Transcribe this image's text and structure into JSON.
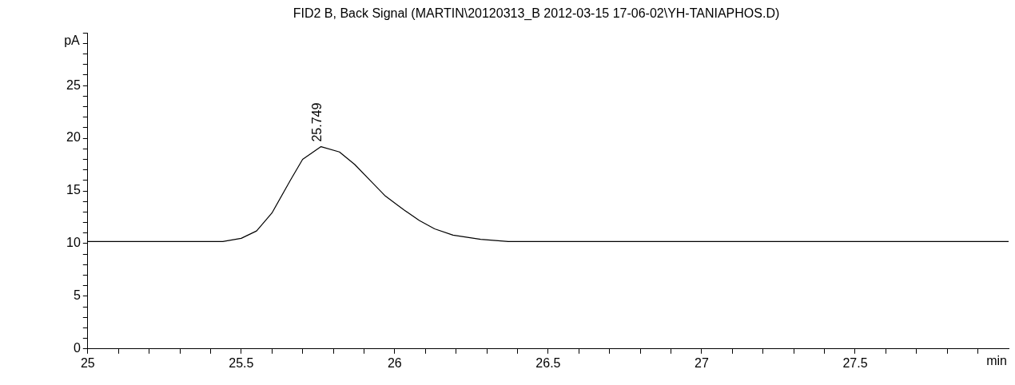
{
  "chart_data": {
    "type": "line",
    "title": "FID2 B, Back Signal (MARTIN\\20120313_B 2012-03-15 17-06-02\\YH-TANIAPHOS.D)",
    "xlabel": "min",
    "ylabel": "pA",
    "series": [
      {
        "color": "#000000",
        "x": [
          25.0,
          25.3,
          25.44,
          25.5,
          25.55,
          25.6,
          25.66,
          25.7,
          25.76,
          25.82,
          25.87,
          25.92,
          25.97,
          26.03,
          26.08,
          26.13,
          26.19,
          26.28,
          26.37,
          26.46,
          27.0,
          27.5,
          28.0
        ],
        "values": [
          10.2,
          10.2,
          10.2,
          10.5,
          11.2,
          12.9,
          16.0,
          18.0,
          19.2,
          18.7,
          17.5,
          16.0,
          14.5,
          13.2,
          12.2,
          11.4,
          10.8,
          10.4,
          10.2,
          10.2,
          10.2,
          10.2,
          10.2
        ]
      }
    ],
    "annotations": [
      {
        "text": "25.749",
        "x": 25.749,
        "y": 19.2
      }
    ],
    "marker": "none",
    "grid": false,
    "legend": false,
    "xlim": [
      25,
      28
    ],
    "ylim": [
      0,
      30
    ],
    "xticks": [
      25,
      {
        "value": 25.1,
        "label": null
      },
      {
        "value": 25.2,
        "label": null
      },
      {
        "value": 25.3,
        "label": null
      },
      {
        "value": 25.4,
        "label": null
      },
      25.5,
      {
        "value": 25.6,
        "label": null
      },
      {
        "value": 25.7,
        "label": null
      },
      {
        "value": 25.8,
        "label": null
      },
      {
        "value": 25.9,
        "label": null
      },
      26,
      {
        "value": 26.1,
        "label": null
      },
      {
        "value": 26.2,
        "label": null
      },
      {
        "value": 26.3,
        "label": null
      },
      {
        "value": 26.4,
        "label": null
      },
      26.5,
      {
        "value": 26.6,
        "label": null
      },
      {
        "value": 26.7,
        "label": null
      },
      {
        "value": 26.8,
        "label": null
      },
      {
        "value": 26.9,
        "label": null
      },
      27,
      {
        "value": 27.1,
        "label": null
      },
      {
        "value": 27.2,
        "label": null
      },
      {
        "value": 27.3,
        "label": null
      },
      {
        "value": 27.4,
        "label": null
      },
      27.5,
      {
        "value": 27.6,
        "label": null
      },
      {
        "value": 27.7,
        "label": null
      },
      {
        "value": 27.8,
        "label": null
      },
      {
        "value": 27.9,
        "label": null
      }
    ],
    "yticks": [
      0,
      {
        "value": 1,
        "label": null
      },
      {
        "value": 2,
        "label": null
      },
      {
        "value": 3,
        "label": null
      },
      {
        "value": 4,
        "label": null
      },
      5,
      {
        "value": 6,
        "label": null
      },
      {
        "value": 7,
        "label": null
      },
      {
        "value": 8,
        "label": null
      },
      {
        "value": 9,
        "label": null
      },
      10,
      {
        "value": 11,
        "label": null
      },
      {
        "value": 12,
        "label": null
      },
      {
        "value": 13,
        "label": null
      },
      {
        "value": 14,
        "label": null
      },
      15,
      {
        "value": 16,
        "label": null
      },
      {
        "value": 17,
        "label": null
      },
      {
        "value": 18,
        "label": null
      },
      {
        "value": 19,
        "label": null
      },
      20,
      {
        "value": 21,
        "label": null
      },
      {
        "value": 22,
        "label": null
      },
      {
        "value": 23,
        "label": null
      },
      {
        "value": 24,
        "label": null
      },
      25,
      {
        "value": 26,
        "label": null
      },
      {
        "value": 27,
        "label": null
      },
      {
        "value": 28,
        "label": null
      },
      {
        "value": 29,
        "label": null
      },
      {
        "value": 30,
        "label": null
      }
    ]
  }
}
